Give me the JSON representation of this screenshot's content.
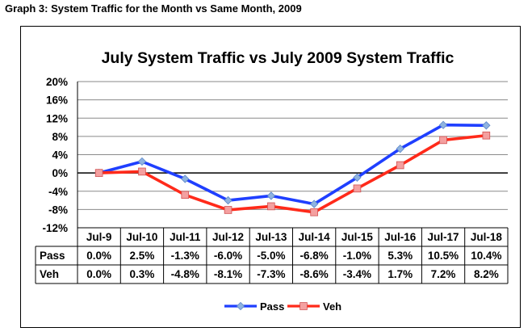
{
  "page": {
    "heading": "Graph 3: System Traffic for the Month vs Same Month, 2009"
  },
  "chart_data": {
    "type": "line",
    "title": "July System Traffic vs July 2009 System Traffic",
    "categories": [
      "Jul-9",
      "Jul-10",
      "Jul-11",
      "Jul-12",
      "Jul-13",
      "Jul-14",
      "Jul-15",
      "Jul-16",
      "Jul-17",
      "Jul-18"
    ],
    "ylim": [
      -12,
      20
    ],
    "yticks": [
      20,
      16,
      12,
      8,
      4,
      0,
      -4,
      -8,
      -12
    ],
    "ytick_labels": [
      "20%",
      "16%",
      "12%",
      "8%",
      "4%",
      "0%",
      "-4%",
      "-8%",
      "-12%"
    ],
    "grid": true,
    "legend_position": "bottom-center",
    "series": [
      {
        "name": "Pass",
        "color": "#1f3fff",
        "marker_color": "#8fb3e0",
        "values": [
          0.0,
          2.5,
          -1.3,
          -6.0,
          -5.0,
          -6.8,
          -1.0,
          5.3,
          10.5,
          10.4
        ],
        "labels": [
          "0.0%",
          "2.5%",
          "-1.3%",
          "-6.0%",
          "-5.0%",
          "-6.8%",
          "-1.0%",
          "5.3%",
          "10.5%",
          "10.4%"
        ]
      },
      {
        "name": "Veh",
        "color": "#ff2a1a",
        "marker_color": "#f4a0a0",
        "values": [
          0.0,
          0.3,
          -4.8,
          -8.1,
          -7.3,
          -8.6,
          -3.4,
          1.7,
          7.2,
          8.2
        ],
        "labels": [
          "0.0%",
          "0.3%",
          "-4.8%",
          "-8.1%",
          "-7.3%",
          "-8.6%",
          "-3.4%",
          "1.7%",
          "7.2%",
          "8.2%"
        ]
      }
    ]
  }
}
